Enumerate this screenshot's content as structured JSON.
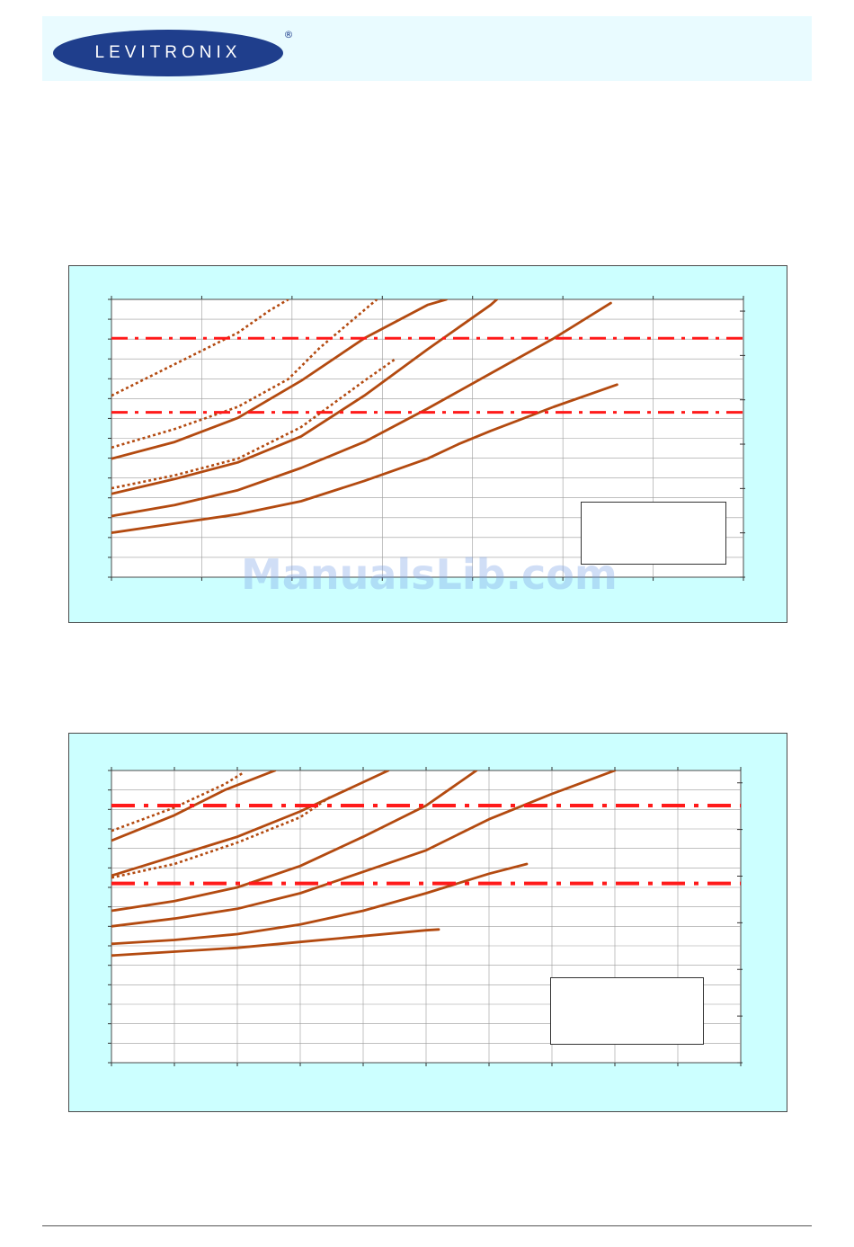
{
  "header": {
    "logo_text": "LEVITRONIX",
    "logo_mark": "®",
    "brand_colors": {
      "ellipse": "#1f3e8c",
      "text": "#ffffff",
      "band": "#e9fbff"
    }
  },
  "watermark": {
    "text": "ManualsLib.com"
  },
  "colors": {
    "panel": "#ccffff",
    "curve": "#b34a10",
    "limit_line": "#ff1a1a",
    "grid": "#9a9a9a"
  },
  "chart_data": [
    {
      "type": "line",
      "xlim": [
        0,
        10
      ],
      "ylim": [
        0,
        7.5
      ],
      "y2lim": [
        0,
        6.8
      ],
      "grid": true,
      "series": [
        {
          "style": "solid",
          "points": [
            [
              0,
              1.2
            ],
            [
              1,
              1.45
            ],
            [
              2,
              1.7
            ],
            [
              3,
              2.05
            ],
            [
              4,
              2.6
            ],
            [
              5,
              3.2
            ],
            [
              5.5,
              3.6
            ],
            [
              6,
              3.95
            ],
            [
              7,
              4.6
            ],
            [
              8,
              5.2
            ]
          ]
        },
        {
          "style": "solid",
          "points": [
            [
              0,
              1.65
            ],
            [
              1,
              1.95
            ],
            [
              2,
              2.35
            ],
            [
              3,
              2.95
            ],
            [
              4,
              3.65
            ],
            [
              5,
              4.55
            ],
            [
              6,
              5.5
            ],
            [
              7,
              6.45
            ],
            [
              7.9,
              7.4
            ]
          ]
        },
        {
          "style": "solid",
          "points": [
            [
              0,
              2.25
            ],
            [
              1,
              2.65
            ],
            [
              2,
              3.1
            ],
            [
              3,
              3.8
            ],
            [
              4,
              4.9
            ],
            [
              5,
              6.15
            ],
            [
              6,
              7.35
            ],
            [
              6.1,
              7.5
            ]
          ]
        },
        {
          "style": "solid",
          "points": [
            [
              0,
              3.2
            ],
            [
              1,
              3.65
            ],
            [
              2,
              4.3
            ],
            [
              3,
              5.3
            ],
            [
              4,
              6.45
            ],
            [
              5,
              7.35
            ],
            [
              5.3,
              7.5
            ]
          ]
        },
        {
          "style": "dotted",
          "points": [
            [
              0,
              2.4
            ],
            [
              1,
              2.75
            ],
            [
              2,
              3.2
            ],
            [
              3,
              4.05
            ],
            [
              4,
              5.3
            ],
            [
              4.5,
              5.9
            ]
          ]
        },
        {
          "style": "dotted",
          "points": [
            [
              0,
              3.5
            ],
            [
              1,
              4.0
            ],
            [
              2,
              4.6
            ],
            [
              2.8,
              5.35
            ],
            [
              3.3,
              6.2
            ],
            [
              4.2,
              7.5
            ]
          ]
        },
        {
          "style": "dotted",
          "points": [
            [
              0,
              4.9
            ],
            [
              1,
              5.75
            ],
            [
              2,
              6.6
            ],
            [
              2.5,
              7.2
            ],
            [
              2.8,
              7.5
            ]
          ]
        }
      ],
      "limit_lines": [
        4.45,
        6.45
      ]
    },
    {
      "type": "line",
      "xlim": [
        0,
        10
      ],
      "ylim": [
        0,
        7.5
      ],
      "y2lim": [
        0,
        6.8
      ],
      "grid": true,
      "series": [
        {
          "style": "solid",
          "points": [
            [
              0,
              2.75
            ],
            [
              1,
              2.85
            ],
            [
              2,
              2.95
            ],
            [
              3,
              3.1
            ],
            [
              4,
              3.25
            ],
            [
              5,
              3.4
            ],
            [
              5.2,
              3.42
            ]
          ]
        },
        {
          "style": "solid",
          "points": [
            [
              0,
              3.05
            ],
            [
              1,
              3.15
            ],
            [
              2,
              3.3
            ],
            [
              3,
              3.55
            ],
            [
              4,
              3.9
            ],
            [
              5,
              4.35
            ],
            [
              6,
              4.85
            ],
            [
              6.6,
              5.1
            ]
          ]
        },
        {
          "style": "solid",
          "points": [
            [
              0,
              3.5
            ],
            [
              1,
              3.7
            ],
            [
              2,
              3.95
            ],
            [
              3,
              4.35
            ],
            [
              4,
              4.9
            ],
            [
              5,
              5.45
            ],
            [
              6,
              6.25
            ],
            [
              7,
              6.9
            ],
            [
              8,
              7.5
            ]
          ]
        },
        {
          "style": "solid",
          "points": [
            [
              0,
              3.9
            ],
            [
              1,
              4.15
            ],
            [
              2,
              4.5
            ],
            [
              3,
              5.05
            ],
            [
              4,
              5.8
            ],
            [
              5,
              6.6
            ],
            [
              5.8,
              7.5
            ]
          ]
        },
        {
          "style": "solid",
          "points": [
            [
              0,
              4.8
            ],
            [
              1,
              5.3
            ],
            [
              2,
              5.8
            ],
            [
              3,
              6.45
            ],
            [
              4,
              7.2
            ],
            [
              4.4,
              7.5
            ]
          ]
        },
        {
          "style": "solid",
          "points": [
            [
              0,
              5.7
            ],
            [
              1,
              6.35
            ],
            [
              1.8,
              7.0
            ],
            [
              2.6,
              7.5
            ]
          ]
        },
        {
          "style": "dotted",
          "points": [
            [
              0,
              4.75
            ],
            [
              1,
              5.1
            ],
            [
              2,
              5.65
            ],
            [
              3,
              6.3
            ],
            [
              3.5,
              6.85
            ]
          ]
        },
        {
          "style": "dotted",
          "points": [
            [
              0,
              5.95
            ],
            [
              1,
              6.55
            ],
            [
              1.8,
              7.15
            ],
            [
              2.1,
              7.45
            ]
          ]
        }
      ],
      "limit_lines": [
        4.6,
        6.6
      ]
    }
  ]
}
